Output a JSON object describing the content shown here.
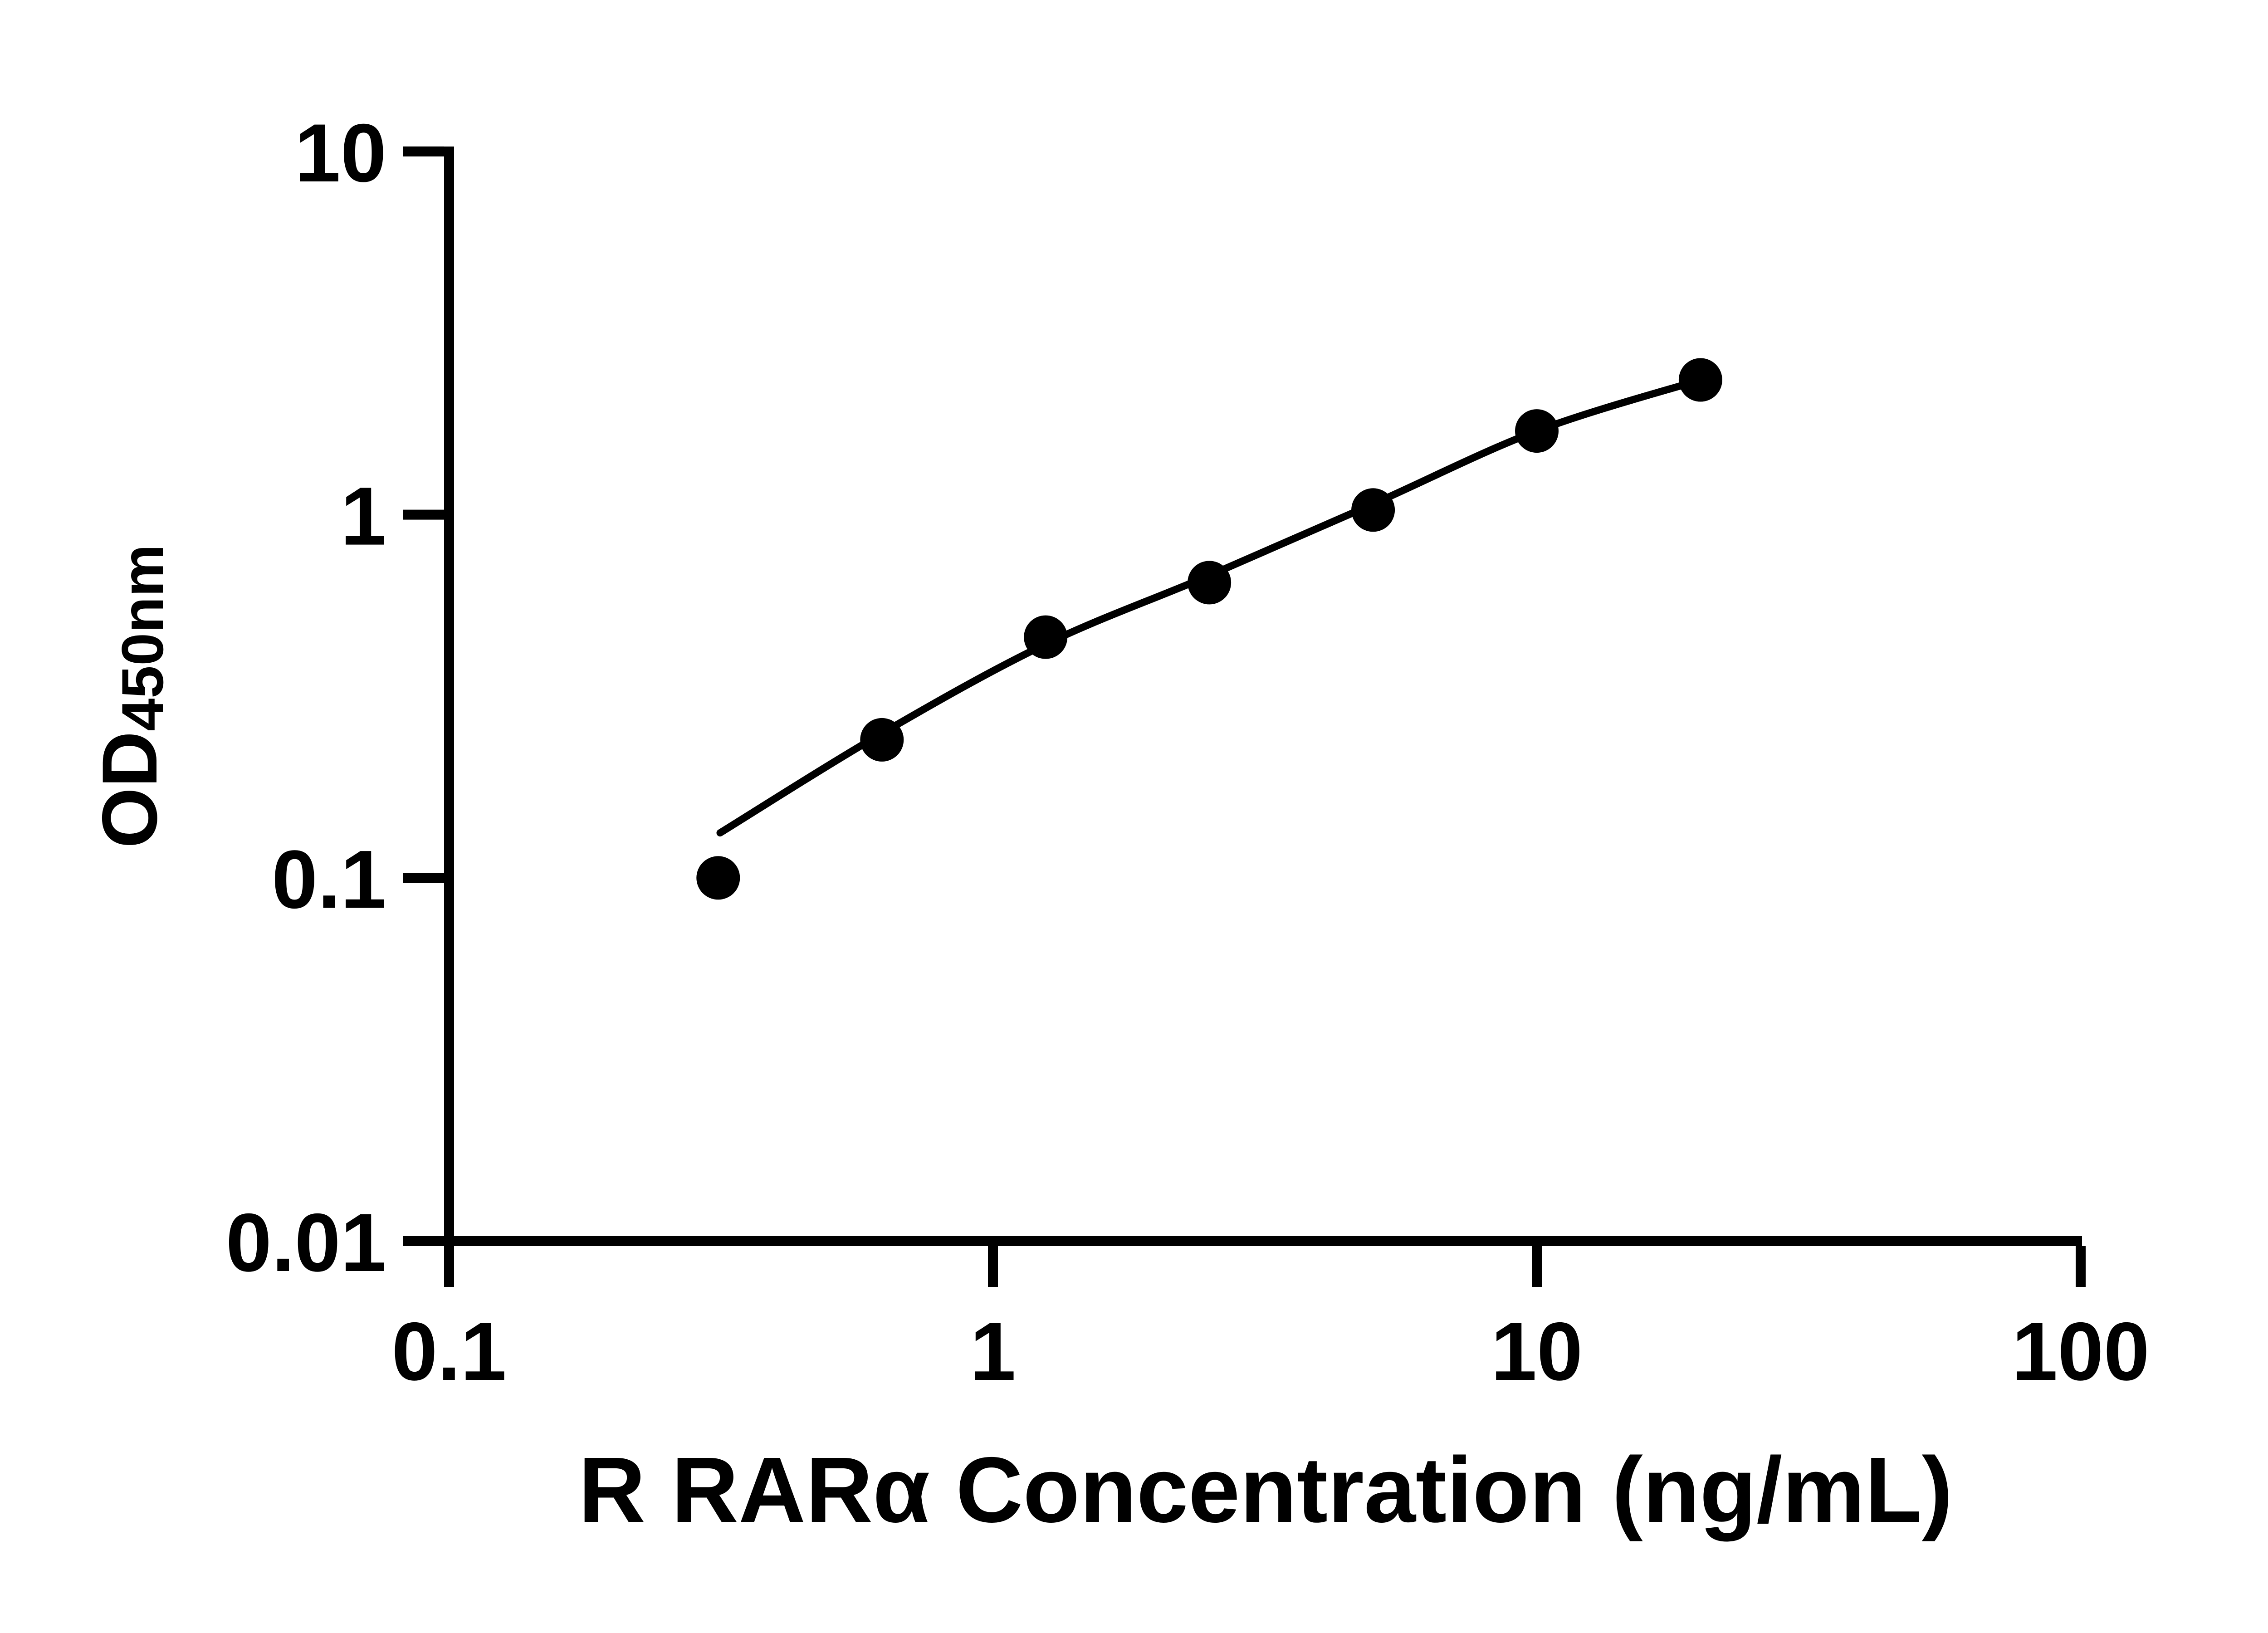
{
  "chart_data": {
    "type": "scatter",
    "title": "",
    "xlabel": "R RARα Concentration (ng/mL)",
    "ylabel_main": "OD",
    "ylabel_sub": "450nm",
    "x": [
      0.3125,
      0.625,
      1.25,
      2.5,
      5,
      10,
      20
    ],
    "y": [
      0.1,
      0.24,
      0.46,
      0.65,
      1.03,
      1.7,
      2.35
    ],
    "fit_curve": [
      [
        0.315,
        0.133
      ],
      [
        0.625,
        0.25
      ],
      [
        1.25,
        0.44
      ],
      [
        2.5,
        0.68
      ],
      [
        5,
        1.07
      ],
      [
        10,
        1.7
      ],
      [
        20,
        2.35
      ]
    ],
    "xscale": "log",
    "yscale": "log",
    "xlim": [
      0.1,
      100
    ],
    "ylim": [
      0.01,
      10
    ],
    "x_tick_values": [
      0.1,
      1,
      10,
      100
    ],
    "x_tick_labels": [
      "0.1",
      "1",
      "10",
      "100"
    ],
    "y_tick_values": [
      10,
      1,
      0.1,
      0.01
    ],
    "y_tick_labels": [
      "10",
      "1",
      "0.1",
      "0.01"
    ],
    "grid": "off",
    "legend": "none",
    "marker_style": "filled-circle",
    "ink_color": "#000000",
    "background_color": "#ffffff"
  }
}
